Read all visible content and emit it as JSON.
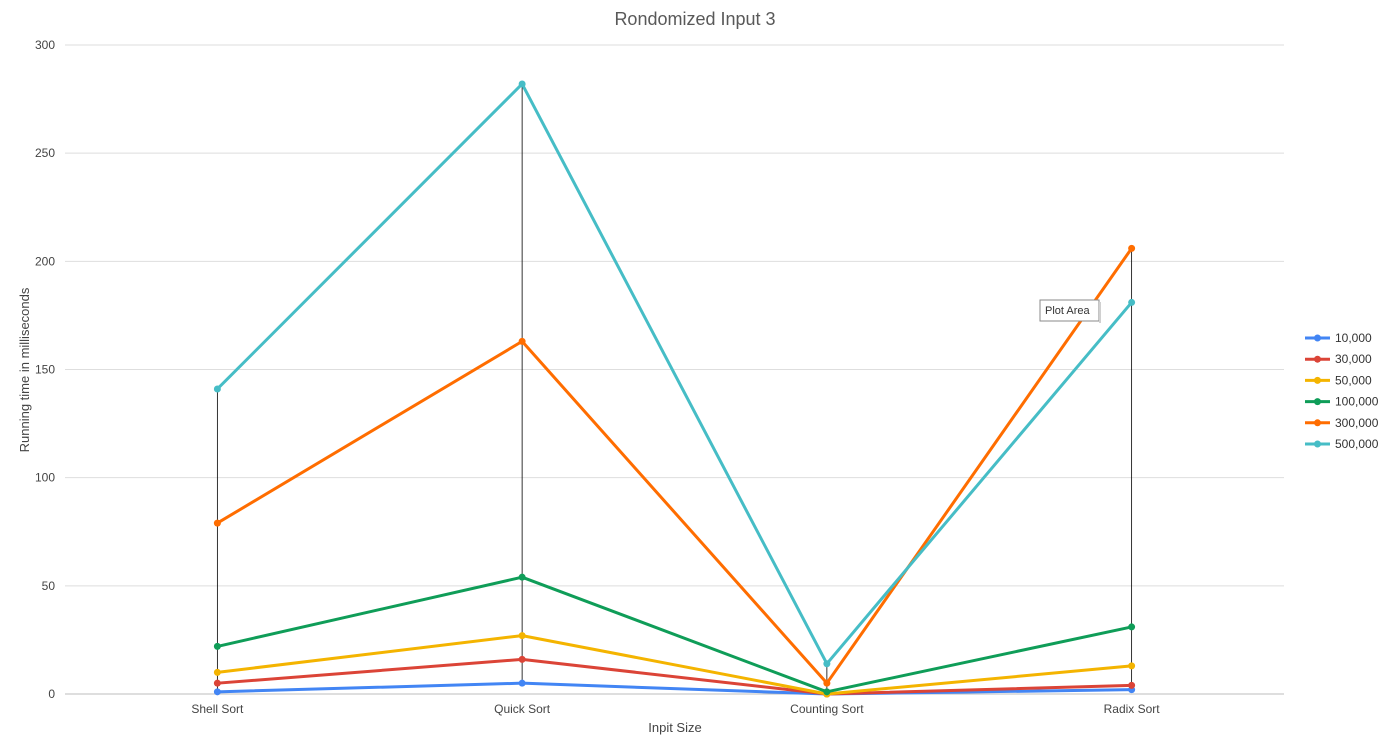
{
  "chart_data": {
    "type": "line",
    "title": "Rondomized Input 3",
    "xlabel": "Inpit Size",
    "ylabel": "Running time in milliseconds",
    "categories": [
      "Shell Sort",
      "Quick Sort",
      "Counting Sort",
      "Radix Sort"
    ],
    "ylim": [
      0,
      300
    ],
    "yticks": [
      0,
      50,
      100,
      150,
      200,
      250,
      300
    ],
    "grid": true,
    "legend_position": "right",
    "hi_lo_lines": true,
    "series": [
      {
        "name": "10,000",
        "color": "#4285f4",
        "values": [
          1,
          5,
          0,
          2
        ]
      },
      {
        "name": "30,000",
        "color": "#db4437",
        "values": [
          5,
          16,
          0,
          4
        ]
      },
      {
        "name": "50,000",
        "color": "#f4b400",
        "values": [
          10,
          27,
          0,
          13
        ]
      },
      {
        "name": "100,000",
        "color": "#0f9d58",
        "values": [
          22,
          54,
          1,
          31
        ]
      },
      {
        "name": "300,000",
        "color": "#ff6d00",
        "values": [
          79,
          163,
          5,
          206
        ]
      },
      {
        "name": "500,000",
        "color": "#46bdc6",
        "values": [
          141,
          282,
          14,
          181
        ]
      }
    ]
  },
  "tooltip": {
    "text": "Plot Area"
  }
}
